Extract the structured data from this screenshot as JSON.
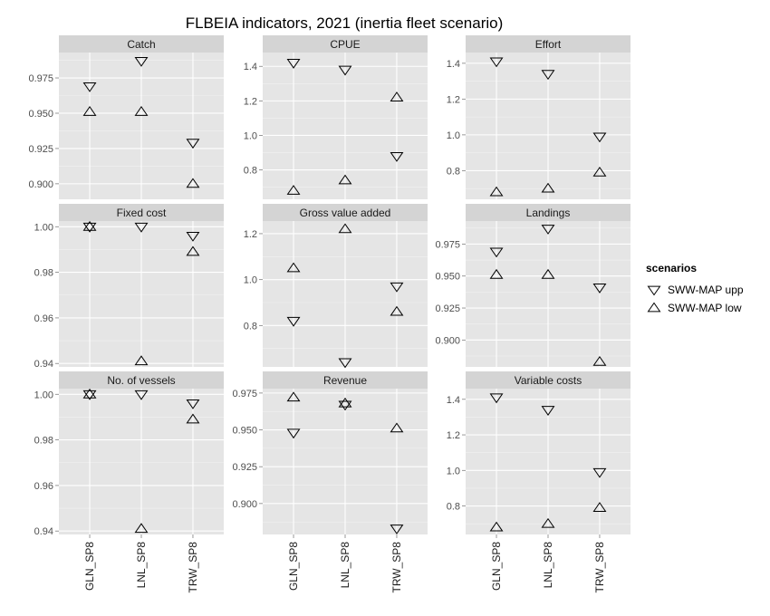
{
  "title": "FLBEIA indicators, 2021 (inertia fleet scenario)",
  "legend": {
    "title": "scenarios",
    "entries": [
      {
        "label": "SWW-MAP upp",
        "shape": "triangle-down"
      },
      {
        "label": "SWW-MAP low",
        "shape": "triangle-up"
      }
    ]
  },
  "chart_data": {
    "type": "scatter",
    "title": "FLBEIA indicators, 2021 (inertia fleet scenario)",
    "categories": [
      "GLN_SP8",
      "LNL_SP8",
      "TRW_SP8"
    ],
    "grid": true,
    "legend_position": "right",
    "facets": [
      {
        "name": "Catch",
        "ylim": [
          0.889,
          0.993
        ],
        "yticks": [
          0.9,
          0.925,
          0.95,
          0.975
        ],
        "ytick_labels": [
          "0.900",
          "0.925",
          "0.950",
          "0.975"
        ],
        "series": [
          {
            "name": "SWW-MAP upp",
            "values": [
              0.969,
              0.987,
              0.929
            ]
          },
          {
            "name": "SWW-MAP low",
            "values": [
              0.951,
              0.951,
              0.9
            ]
          }
        ]
      },
      {
        "name": "CPUE",
        "ylim": [
          0.63,
          1.48
        ],
        "yticks": [
          0.8,
          1.0,
          1.2,
          1.4
        ],
        "ytick_labels": [
          "0.8",
          "1.0",
          "1.2",
          "1.4"
        ],
        "series": [
          {
            "name": "SWW-MAP upp",
            "values": [
              1.42,
              1.38,
              0.88
            ]
          },
          {
            "name": "SWW-MAP low",
            "values": [
              0.68,
              0.74,
              1.22
            ]
          }
        ]
      },
      {
        "name": "Effort",
        "ylim": [
          0.64,
          1.46
        ],
        "yticks": [
          0.8,
          1.0,
          1.2,
          1.4
        ],
        "ytick_labels": [
          "0.8",
          "1.0",
          "1.2",
          "1.4"
        ],
        "series": [
          {
            "name": "SWW-MAP upp",
            "values": [
              1.41,
              1.34,
              0.99
            ]
          },
          {
            "name": "SWW-MAP low",
            "values": [
              0.68,
              0.7,
              0.79
            ]
          }
        ]
      },
      {
        "name": "Fixed cost",
        "ylim": [
          0.9385,
          1.0025
        ],
        "yticks": [
          0.94,
          0.96,
          0.98,
          1.0
        ],
        "ytick_labels": [
          "0.94",
          "0.96",
          "0.98",
          "1.00"
        ],
        "series": [
          {
            "name": "SWW-MAP upp",
            "values": [
              1.0,
              1.0,
              0.996
            ]
          },
          {
            "name": "SWW-MAP low",
            "values": [
              1.0,
              0.941,
              0.989
            ]
          }
        ]
      },
      {
        "name": "Gross value added",
        "ylim": [
          0.62,
          1.255
        ],
        "yticks": [
          0.8,
          1.0,
          1.2
        ],
        "ytick_labels": [
          "0.8",
          "1.0",
          "1.2"
        ],
        "series": [
          {
            "name": "SWW-MAP upp",
            "values": [
              0.82,
              0.64,
              0.97
            ]
          },
          {
            "name": "SWW-MAP low",
            "values": [
              1.05,
              1.22,
              0.86
            ]
          }
        ]
      },
      {
        "name": "Landings",
        "ylim": [
          0.879,
          0.993
        ],
        "yticks": [
          0.9,
          0.925,
          0.95,
          0.975
        ],
        "ytick_labels": [
          "0.900",
          "0.925",
          "0.950",
          "0.975"
        ],
        "series": [
          {
            "name": "SWW-MAP upp",
            "values": [
              0.969,
              0.987,
              0.941
            ]
          },
          {
            "name": "SWW-MAP low",
            "values": [
              0.951,
              0.951,
              0.883
            ]
          }
        ]
      },
      {
        "name": "No. of vessels",
        "ylim": [
          0.9385,
          1.0025
        ],
        "yticks": [
          0.94,
          0.96,
          0.98,
          1.0
        ],
        "ytick_labels": [
          "0.94",
          "0.96",
          "0.98",
          "1.00"
        ],
        "series": [
          {
            "name": "SWW-MAP upp",
            "values": [
              1.0,
              1.0,
              0.996
            ]
          },
          {
            "name": "SWW-MAP low",
            "values": [
              1.0,
              0.941,
              0.989
            ]
          }
        ]
      },
      {
        "name": "Revenue",
        "ylim": [
          0.879,
          0.978
        ],
        "yticks": [
          0.9,
          0.925,
          0.95,
          0.975
        ],
        "ytick_labels": [
          "0.900",
          "0.925",
          "0.950",
          "0.975"
        ],
        "series": [
          {
            "name": "SWW-MAP upp",
            "values": [
              0.948,
              0.967,
              0.883
            ]
          },
          {
            "name": "SWW-MAP low",
            "values": [
              0.972,
              0.968,
              0.951
            ]
          }
        ]
      },
      {
        "name": "Variable costs",
        "ylim": [
          0.64,
          1.46
        ],
        "yticks": [
          0.8,
          1.0,
          1.2,
          1.4
        ],
        "ytick_labels": [
          "0.8",
          "1.0",
          "1.2",
          "1.4"
        ],
        "series": [
          {
            "name": "SWW-MAP upp",
            "values": [
              1.41,
              1.34,
              0.99
            ]
          },
          {
            "name": "SWW-MAP low",
            "values": [
              0.68,
              0.7,
              0.79
            ]
          }
        ]
      }
    ]
  }
}
